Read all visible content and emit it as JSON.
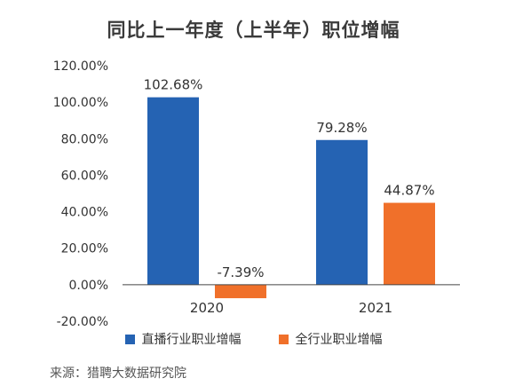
{
  "colors": {
    "series_1": "#2563b3",
    "series_2": "#f0702a",
    "axis": "#444444"
  },
  "chart_data": {
    "type": "bar",
    "title": "同比上一年度（上半年）职位增幅",
    "categories": [
      "2020",
      "2021"
    ],
    "series": [
      {
        "name": "直播行业职业增幅",
        "values": [
          102.68,
          79.28
        ],
        "labels": [
          "102.68%",
          "79.28%"
        ]
      },
      {
        "name": "全行业职业增幅",
        "values": [
          -7.39,
          44.87
        ],
        "labels": [
          "-7.39%",
          "44.87%"
        ]
      }
    ],
    "y_ticks": [
      "120.00%",
      "100.00%",
      "80.00%",
      "60.00%",
      "40.00%",
      "20.00%",
      "0.00%",
      "-20.00%"
    ],
    "ylim": [
      -20,
      120
    ],
    "grid": false,
    "legend": "bottom"
  },
  "source": "来源：猎聘大数据研究院"
}
